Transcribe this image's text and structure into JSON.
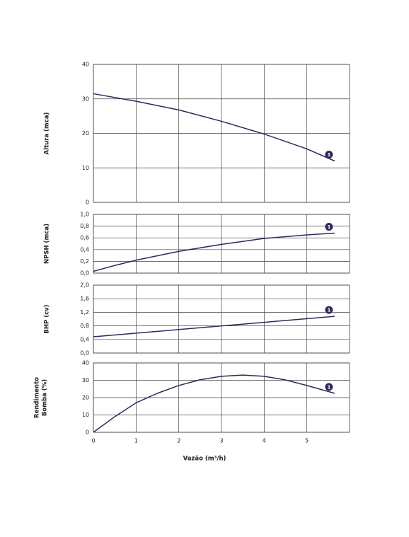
{
  "chart_data": [
    {
      "type": "line",
      "ylabel": "Altura (mca)",
      "xlim": [
        0,
        6
      ],
      "xticks": [
        0,
        1,
        2,
        3,
        4,
        5
      ],
      "ylim": [
        0,
        40
      ],
      "yticks": [
        0,
        10,
        20,
        30,
        40
      ],
      "grid": true,
      "x": [
        0,
        1,
        2,
        3,
        4,
        5,
        5.65
      ],
      "series": [
        {
          "name": "1",
          "color": "#2b2b5c",
          "values": [
            31.5,
            29.3,
            26.8,
            23.5,
            19.8,
            15.5,
            12
          ]
        }
      ]
    },
    {
      "type": "line",
      "ylabel": "NPSH (mca)",
      "xlim": [
        0,
        6
      ],
      "xticks": [
        0,
        1,
        2,
        3,
        4,
        5
      ],
      "ylim": [
        0,
        1
      ],
      "grid": true,
      "yticks": [
        {
          "value": 0,
          "label": "0,0"
        },
        {
          "value": 0.2,
          "label": "0,2"
        },
        {
          "value": 0.4,
          "label": "0,4"
        },
        {
          "value": 0.6,
          "label": "0,6"
        },
        {
          "value": 0.8,
          "label": "0,8"
        },
        {
          "value": 1,
          "label": "1,0"
        }
      ],
      "x": [
        0,
        0.5,
        1,
        2,
        3,
        4,
        5,
        5.65
      ],
      "series": [
        {
          "name": "1",
          "color": "#2b2b5c",
          "values": [
            0.03,
            0.13,
            0.22,
            0.37,
            0.49,
            0.59,
            0.65,
            0.68
          ]
        }
      ]
    },
    {
      "type": "line",
      "ylabel": "BHP (cv)",
      "xlim": [
        0,
        6
      ],
      "xticks": [
        0,
        1,
        2,
        3,
        4,
        5
      ],
      "ylim": [
        0,
        2
      ],
      "grid": true,
      "yticks": [
        {
          "value": 0,
          "label": "0,0"
        },
        {
          "value": 0.4,
          "label": "0,4"
        },
        {
          "value": 0.8,
          "label": "0,8"
        },
        {
          "value": 1.2,
          "label": "1,2"
        },
        {
          "value": 1.6,
          "label": "1,6"
        },
        {
          "value": 2,
          "label": "2,0"
        }
      ],
      "x": [
        0,
        5.65
      ],
      "series": [
        {
          "name": "1",
          "color": "#2b2b5c",
          "values": [
            0.48,
            1.08
          ]
        }
      ]
    },
    {
      "type": "line",
      "ylabel": [
        "Rendimento",
        "Bomba (%)"
      ],
      "xlabel": "Vazão (m³/h)",
      "xlim": [
        0,
        6
      ],
      "xticks": [
        0,
        1,
        2,
        3,
        4,
        5
      ],
      "ylim": [
        0,
        40
      ],
      "yticks": [
        0,
        10,
        20,
        30,
        40
      ],
      "grid": true,
      "x": [
        0,
        0.5,
        1,
        1.5,
        2,
        2.5,
        3,
        3.5,
        4,
        4.5,
        5,
        5.65
      ],
      "series": [
        {
          "name": "1",
          "color": "#2b2b5c",
          "values": [
            0,
            9,
            17,
            22.5,
            27,
            30.3,
            32.3,
            33,
            32.3,
            30.2,
            27,
            22.5
          ]
        }
      ]
    }
  ]
}
